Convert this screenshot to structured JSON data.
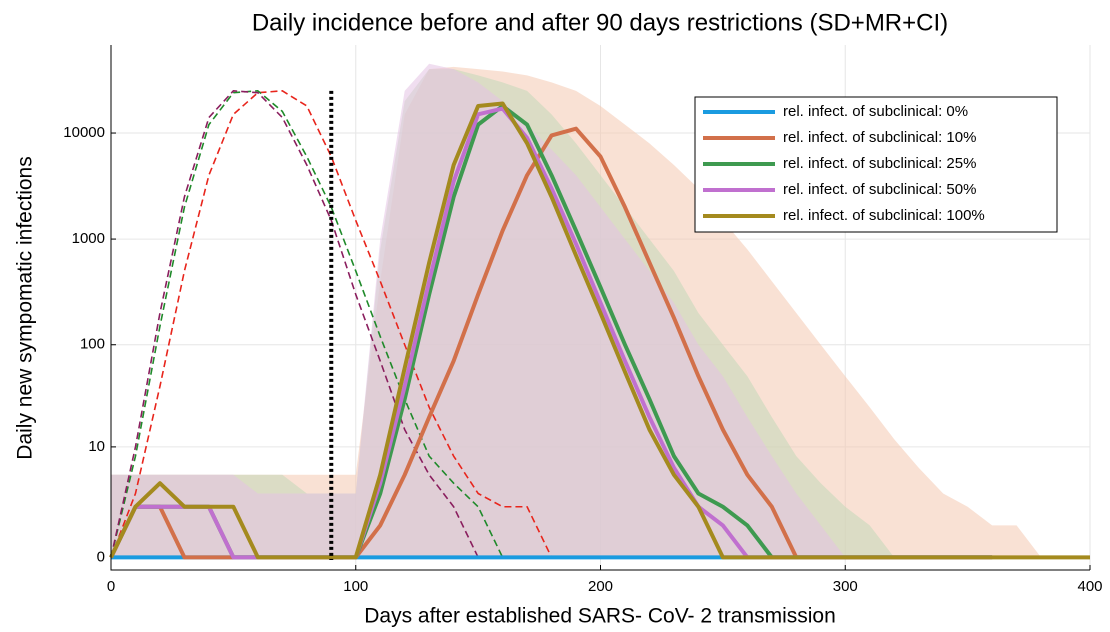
{
  "chart_data": {
    "type": "line",
    "title": "Daily incidence before and after 90 days restrictions (SD+MR+CI)",
    "x_label": "Days after established SARS- CoV- 2 transmission",
    "y_label": "Daily new sympomatic infections",
    "yscale": "log1p",
    "xlim": [
      0,
      400
    ],
    "ylim": [
      -0.24,
      67600
    ],
    "xticks": [
      0,
      100,
      200,
      300,
      400
    ],
    "yticks": [
      0,
      10,
      100,
      1000,
      10000
    ],
    "grid": true,
    "legend": "top-right",
    "vline_x": 90,
    "x": [
      0,
      10,
      20,
      30,
      40,
      50,
      60,
      70,
      80,
      90,
      100,
      110,
      120,
      130,
      140,
      150,
      160,
      170,
      180,
      190,
      200,
      210,
      220,
      230,
      240,
      250,
      260,
      270,
      280,
      290,
      300,
      310,
      320,
      330,
      340,
      350,
      360,
      370,
      380,
      390,
      400
    ],
    "bands": [
      {
        "color": "#f4c9b0",
        "upper": [
          5,
          5,
          5,
          5,
          5,
          5,
          5,
          5,
          5,
          5,
          5,
          400,
          15000,
          40000,
          42000,
          40000,
          38000,
          35000,
          30000,
          25000,
          18000,
          12000,
          8000,
          5000,
          3000,
          1500,
          800,
          400,
          200,
          100,
          50,
          25,
          12,
          6,
          3,
          2,
          1,
          1,
          0,
          0,
          0
        ],
        "lower": [
          0,
          0,
          0,
          0,
          0,
          0,
          0,
          0,
          0,
          0,
          0,
          0,
          0,
          0,
          0,
          0,
          0,
          0,
          0,
          0,
          0,
          0,
          0,
          0,
          0,
          0,
          0,
          0,
          0,
          0,
          0,
          0,
          0,
          0,
          0,
          0,
          0,
          0,
          0,
          0,
          0
        ]
      },
      {
        "color": "#c3d8b8",
        "upper": [
          5,
          5,
          5,
          5,
          5,
          5,
          5,
          5,
          3,
          3,
          3,
          800,
          20000,
          40000,
          40000,
          35000,
          30000,
          25000,
          15000,
          8000,
          4000,
          2000,
          1000,
          500,
          200,
          100,
          50,
          20,
          8,
          4,
          2,
          1,
          0,
          0,
          0,
          0,
          0,
          0,
          0,
          0,
          0
        ],
        "lower": [
          0,
          0,
          0,
          0,
          0,
          0,
          0,
          0,
          0,
          0,
          0,
          0,
          0,
          0,
          0,
          0,
          0,
          0,
          0,
          0,
          0,
          0,
          0,
          0,
          0,
          0,
          0,
          0,
          0,
          0,
          0,
          0,
          0,
          0,
          0,
          0,
          0,
          0,
          0,
          0,
          0
        ]
      },
      {
        "color": "#e3c3e3",
        "upper": [
          5,
          5,
          5,
          5,
          5,
          5,
          3,
          3,
          3,
          3,
          3,
          1000,
          25000,
          45000,
          40000,
          30000,
          20000,
          12000,
          7000,
          4000,
          2000,
          1000,
          500,
          250,
          100,
          50,
          20,
          8,
          3,
          1,
          0,
          0,
          0,
          0,
          0,
          0,
          0,
          0,
          0,
          0,
          0
        ],
        "lower": [
          0,
          0,
          0,
          0,
          0,
          0,
          0,
          0,
          0,
          0,
          0,
          0,
          0,
          0,
          0,
          0,
          0,
          0,
          0,
          0,
          0,
          0,
          0,
          0,
          0,
          0,
          0,
          0,
          0,
          0,
          0,
          0,
          0,
          0,
          0,
          0,
          0,
          0,
          0,
          0,
          0
        ]
      }
    ],
    "dashed_series": [
      {
        "color": "#e8251c",
        "values": [
          0,
          3,
          40,
          500,
          4000,
          15000,
          24000,
          25000,
          18000,
          6000,
          1500,
          400,
          100,
          25,
          8,
          3,
          2,
          2,
          0,
          null,
          null,
          null,
          null,
          null,
          null,
          null,
          null,
          null,
          null,
          null,
          null,
          null,
          null,
          null,
          null,
          null,
          null,
          null,
          null,
          null,
          null
        ]
      },
      {
        "color": "#1f8a2a",
        "values": [
          0,
          8,
          150,
          2000,
          12000,
          24000,
          25000,
          16000,
          6000,
          2000,
          500,
          120,
          30,
          8,
          4,
          2,
          0,
          null,
          null,
          null,
          null,
          null,
          null,
          null,
          null,
          null,
          null,
          null,
          null,
          null,
          null,
          null,
          null,
          null,
          null,
          null,
          null,
          null,
          null,
          null,
          null
        ]
      },
      {
        "color": "#8a1e5e",
        "values": [
          0,
          10,
          200,
          2500,
          14000,
          25000,
          24000,
          14000,
          5000,
          1500,
          300,
          70,
          15,
          5,
          2,
          0,
          null,
          null,
          null,
          null,
          null,
          null,
          null,
          null,
          null,
          null,
          null,
          null,
          null,
          null,
          null,
          null,
          null,
          null,
          null,
          null,
          null,
          null,
          null,
          null,
          null
        ]
      }
    ],
    "series": [
      {
        "name": "rel. infect. of subclinical: 0%",
        "color": "#1a9be0",
        "values": [
          0,
          0,
          0,
          0,
          0,
          0,
          0,
          0,
          0,
          0,
          0,
          0,
          0,
          0,
          0,
          0,
          0,
          0,
          0,
          0,
          0,
          0,
          0,
          0,
          0,
          0,
          0,
          0,
          0,
          0,
          0,
          0,
          0,
          0,
          0,
          0,
          0,
          null,
          null,
          null,
          null
        ]
      },
      {
        "name": "rel. infect. of subclinical: 10%",
        "color": "#d2704a",
        "values": [
          0,
          2,
          2,
          0,
          0,
          0,
          0,
          0,
          0,
          0,
          0,
          1,
          5,
          20,
          70,
          300,
          1200,
          4000,
          9500,
          11000,
          6000,
          2000,
          600,
          180,
          50,
          15,
          5,
          2,
          0,
          0,
          0,
          0,
          0,
          0,
          0,
          0,
          0,
          null,
          null,
          null,
          null
        ]
      },
      {
        "name": "rel. infect. of subclinical: 25%",
        "color": "#3e9a50",
        "values": [
          0,
          2,
          2,
          2,
          2,
          0,
          0,
          0,
          0,
          0,
          0,
          3,
          30,
          300,
          2500,
          12000,
          18000,
          12000,
          4000,
          1200,
          350,
          100,
          30,
          8,
          3,
          2,
          1,
          0,
          0,
          0,
          0,
          0,
          0,
          0,
          0,
          0,
          0,
          null,
          null,
          null,
          null
        ]
      },
      {
        "name": "rel. infect. of subclinical: 50%",
        "color": "#c070cf",
        "values": [
          0,
          2,
          2,
          2,
          2,
          0,
          0,
          0,
          0,
          0,
          0,
          4,
          40,
          400,
          3500,
          15000,
          17000,
          9000,
          3000,
          900,
          250,
          70,
          20,
          6,
          2,
          1,
          0,
          0,
          0,
          0,
          0,
          0,
          0,
          0,
          0,
          0,
          0,
          null,
          null,
          null,
          null
        ]
      },
      {
        "name": "rel. infect. of subclinical: 100%",
        "color": "#a48a1e",
        "values": [
          0,
          2,
          4,
          2,
          2,
          2,
          0,
          0,
          0,
          0,
          0,
          5,
          60,
          600,
          5000,
          18000,
          19000,
          8000,
          2500,
          700,
          200,
          55,
          15,
          5,
          2,
          0,
          0,
          0,
          0,
          0,
          0,
          0,
          0,
          0,
          0,
          0,
          0,
          0,
          0,
          0,
          0
        ]
      }
    ]
  }
}
